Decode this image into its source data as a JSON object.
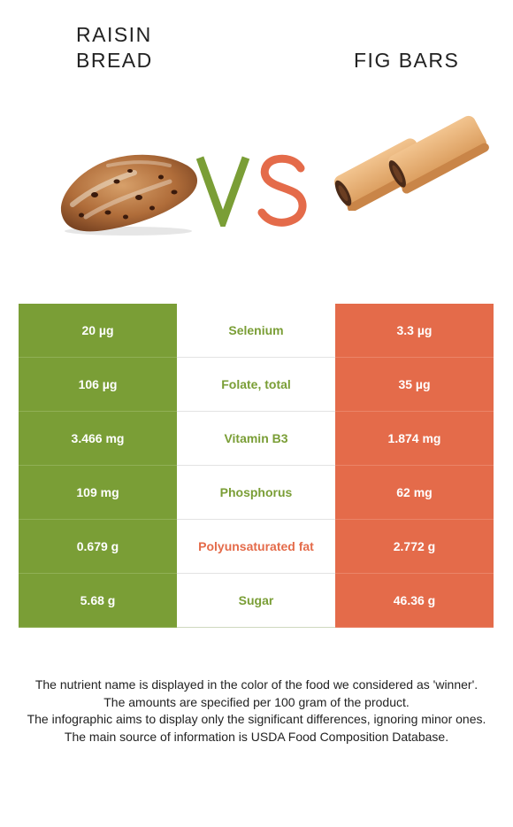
{
  "food_left": {
    "name_line1": "RAISIN",
    "name_line2": "BREAD",
    "color": "#7a9e36"
  },
  "food_right": {
    "name": "FIG BARS",
    "color": "#e46b4a"
  },
  "vs": {
    "v_color": "#7a9e36",
    "s_color": "#e46b4a"
  },
  "rows": [
    {
      "left": "20 µg",
      "nutrient": "Selenium",
      "right": "3.3 µg",
      "winner": "left"
    },
    {
      "left": "106 µg",
      "nutrient": "Folate, total",
      "right": "35 µg",
      "winner": "left"
    },
    {
      "left": "3.466 mg",
      "nutrient": "Vitamin B3",
      "right": "1.874 mg",
      "winner": "left"
    },
    {
      "left": "109 mg",
      "nutrient": "Phosphorus",
      "right": "62 mg",
      "winner": "left"
    },
    {
      "left": "0.679 g",
      "nutrient": "Polyunsaturated fat",
      "right": "2.772 g",
      "winner": "right"
    },
    {
      "left": "5.68 g",
      "nutrient": "Sugar",
      "right": "46.36 g",
      "winner": "left"
    }
  ],
  "footer": {
    "line1": "The nutrient name is displayed in the color of the food we considered as 'winner'.",
    "line2": "The amounts are specified per 100 gram of the product.",
    "line3": "The infographic aims to display only the significant differences, ignoring minor ones.",
    "line4": "The main source of information is USDA Food Composition Database."
  }
}
